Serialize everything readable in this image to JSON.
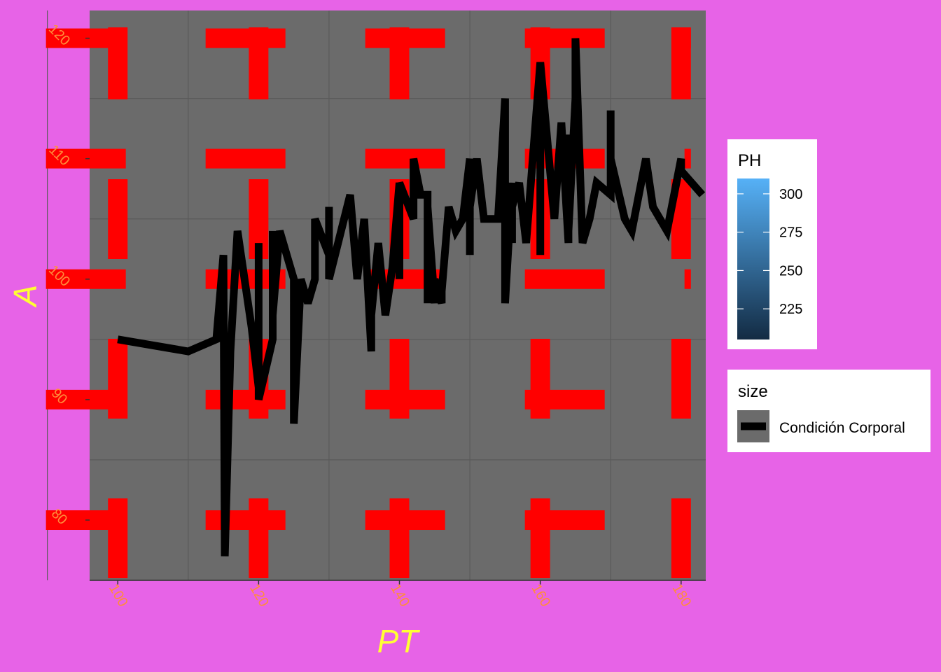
{
  "colors": {
    "background": "#e763e7",
    "panel": "#6b6b6b",
    "major_grid": "#ff0000",
    "minor_grid": "#5a5a5a",
    "line": "#000000",
    "axis_title": "#ffff33",
    "tick_label": "#ff8c3a",
    "legend_bg": "#ffffff",
    "colorbar_low": "#132b43",
    "colorbar_high": "#56b1f7"
  },
  "chart_data": {
    "type": "line",
    "xlabel": "PT",
    "ylabel": "A",
    "xlim": [
      96,
      183.5
    ],
    "ylim": [
      75,
      122.3
    ],
    "x_ticks": [
      100,
      120,
      140,
      160,
      180
    ],
    "y_ticks": [
      80,
      90,
      100,
      110,
      120
    ],
    "x_tick_labels": [
      "100",
      "120",
      "140",
      "160",
      "180"
    ],
    "y_tick_labels": [
      "80",
      "90",
      "100",
      "110",
      "120"
    ],
    "grid": true,
    "legend_position": "right",
    "series": [
      {
        "x": [
          100,
          110,
          114,
          115,
          115.2,
          116,
          117,
          119,
          120,
          120,
          120,
          122,
          122,
          122,
          123,
          125,
          125,
          126,
          127,
          128,
          128,
          130,
          130,
          130,
          133,
          134,
          135,
          136,
          136,
          137,
          138,
          139,
          140,
          140,
          140,
          142,
          142,
          143,
          144,
          144,
          144,
          145,
          145,
          146,
          146,
          147,
          148,
          149,
          150,
          150,
          150,
          151,
          152,
          152,
          154,
          155,
          155,
          155,
          156,
          156,
          156,
          157,
          158,
          158,
          160,
          160,
          160,
          162,
          163,
          164,
          164,
          164,
          165,
          165,
          166,
          167,
          168,
          170,
          170,
          170,
          172,
          173,
          175,
          176,
          178,
          180,
          180,
          183
        ],
        "y": [
          95,
          94,
          95,
          102,
          77,
          94,
          104,
          96,
          91,
          103,
          90,
          95,
          104,
          97,
          104,
          100,
          88,
          100,
          98,
          100,
          105,
          102,
          106,
          100,
          107,
          100,
          105,
          94,
          97,
          103,
          97,
          101,
          108,
          100,
          108,
          105,
          110,
          107,
          107,
          98,
          106,
          98,
          100,
          98,
          99,
          106,
          104,
          105,
          110,
          102,
          106,
          110,
          105,
          105,
          105,
          115,
          100,
          98,
          108,
          103,
          106,
          108,
          103,
          103,
          118,
          102,
          118,
          105,
          113,
          103,
          112,
          104,
          115,
          120,
          103,
          105,
          108,
          107,
          114,
          110,
          105,
          104,
          110,
          106,
          104,
          110,
          109,
          107
        ],
        "line_width_label": "Condición Corporal"
      }
    ],
    "legends": [
      {
        "title": "PH",
        "kind": "colorbar",
        "breaks": [
          "300",
          "275",
          "250",
          "225"
        ],
        "break_values": [
          300,
          275,
          250,
          225
        ],
        "range": [
          205,
          310
        ]
      },
      {
        "title": "size",
        "kind": "key",
        "label": "Condición Corporal"
      }
    ]
  }
}
